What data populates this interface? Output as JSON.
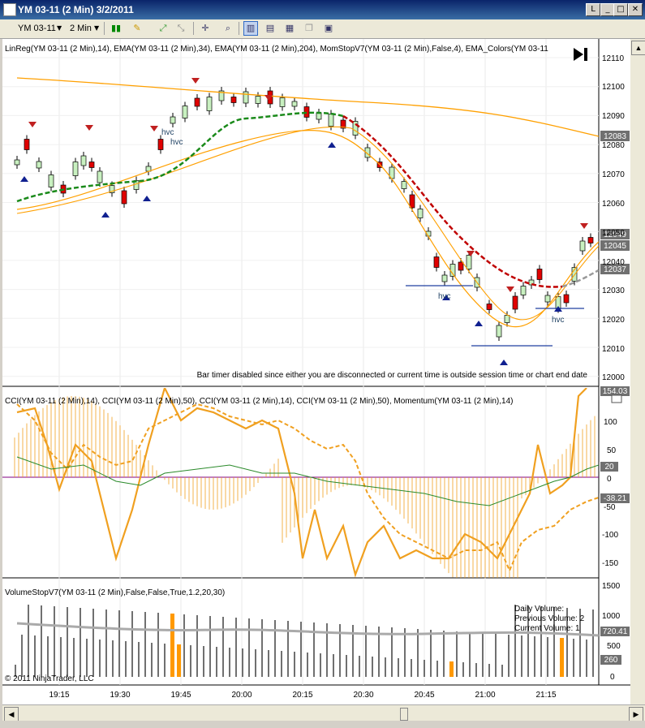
{
  "window": {
    "title": "YM 03-11 (2 Min)  3/2/2011",
    "buttons": {
      "restore": "L",
      "minimize": "_",
      "maximize": "□",
      "close": "✕"
    }
  },
  "toolbar": {
    "instrument": "YM 03-11",
    "interval": "2 Min"
  },
  "panels": {
    "price": {
      "label": "LinReg(YM 03-11 (2 Min),14), EMA(YM 03-11 (2 Min),34), EMA(YM 03-11 (2 Min),204), MomStopV7(YM 03-11 (2 Min),False,4), EMA_Colors(YM 03-11",
      "axis_ticks": [
        "12110",
        "12100",
        "12090",
        "12080",
        "12070",
        "12060",
        "12050",
        "12040",
        "12030",
        "12020",
        "12010",
        "12000"
      ],
      "markers": {
        "m1": "12083",
        "m2": "12049",
        "m3": "12045",
        "m4": "12037"
      },
      "bar_timer_message": "Bar timer disabled since either you are disconnected or current time is outside session time or chart end date",
      "hvc_labels": [
        "hvc",
        "hvc",
        "hvc",
        "hvc"
      ]
    },
    "cci": {
      "label": "CCI(YM 03-11 (2 Min),14), CCI(YM 03-11 (2 Min),50), CCI(YM 03-11 (2 Min),14), CCI(YM 03-11 (2 Min),50), Momentum(YM 03-11 (2 Min),14)",
      "axis_ticks": [
        "100",
        "50",
        "0",
        "-50",
        "-100",
        "-150"
      ],
      "markers": {
        "top": "154.03",
        "m20": "20",
        "m38": "-38.21"
      }
    },
    "volume": {
      "label": "VolumeStopV7(YM 03-11 (2 Min),False,False,True,1.2,20,30)",
      "axis_ticks": [
        "1500",
        "1000",
        "500",
        "0"
      ],
      "markers": {
        "m720": "720.41",
        "m260": "260"
      },
      "daily_volume": "Daily Volume:",
      "previous_volume": "Previous Volume: 2",
      "current_volume": "Current Volume: 1",
      "copyright": "© 2011 NinjaTrader, LLC"
    }
  },
  "time_axis": [
    "19:15",
    "19:30",
    "19:45",
    "20:00",
    "20:15",
    "20:30",
    "20:45",
    "21:00",
    "21:15"
  ],
  "colors": {
    "up_candle": "#c8f0c0",
    "down_candle": "#e00000",
    "ema_fast": "#ffa000",
    "ema_green": "#1a8a1a",
    "ema_red": "#c00000",
    "volume_bar": "#707070",
    "volume_highlight": "#ff9900",
    "marker_bg": "#707070"
  }
}
